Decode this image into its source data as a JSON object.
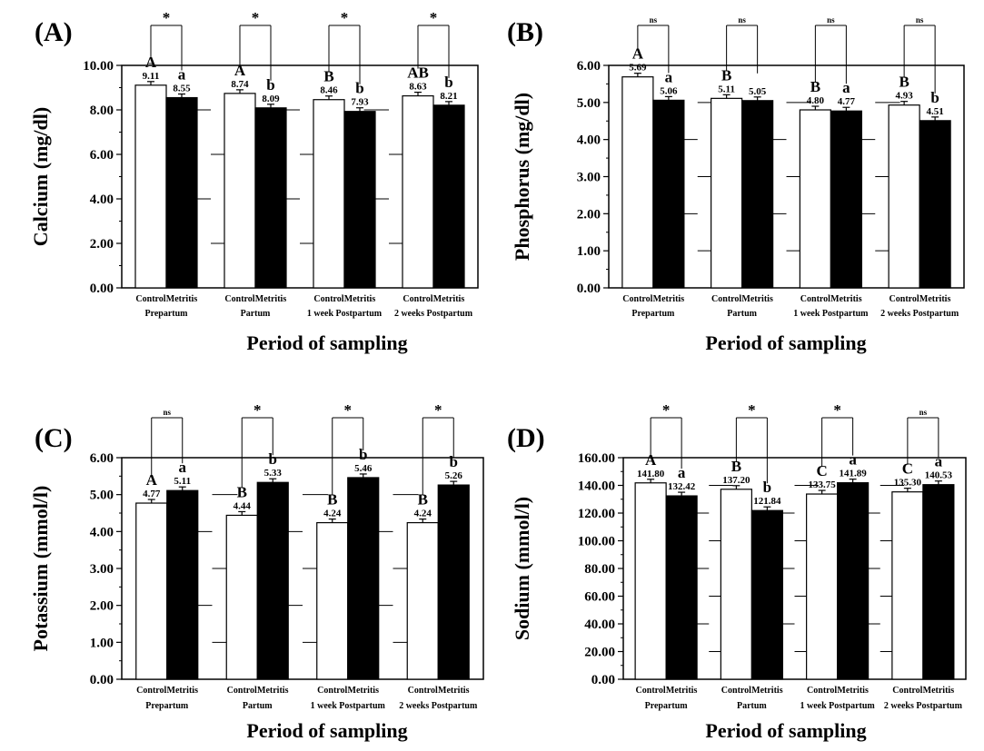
{
  "figure": {
    "xlabel": "Period of sampling",
    "group_labels": [
      "Control",
      "Metritis"
    ],
    "periods": [
      "Prepartum",
      "Partum",
      "1 week Postpartum",
      "2 weeks Postpartum"
    ],
    "colors": {
      "control": "#ffffff",
      "metritis": "#000000",
      "axis": "#000000"
    }
  },
  "chart_data": [
    {
      "type": "bar",
      "panel": "(A)",
      "ylabel": "Calcium (mg/dl)",
      "ylim": [
        0,
        10
      ],
      "yticks": [
        "0.00",
        "2.00",
        "4.00",
        "6.00",
        "8.00",
        "10.00"
      ],
      "categories": [
        "Prepartum",
        "Partum",
        "1 week Postpartum",
        "2 weeks Postpartum"
      ],
      "series": [
        {
          "name": "Control",
          "values": [
            9.11,
            8.74,
            8.46,
            8.63
          ],
          "labels": [
            "9.11",
            "8.74",
            "8.46",
            "8.63"
          ],
          "letters": [
            "A",
            "A",
            "B",
            "AB"
          ]
        },
        {
          "name": "Metritis",
          "values": [
            8.55,
            8.09,
            7.93,
            8.21
          ],
          "labels": [
            "8.55",
            "8.09",
            "7.93",
            "8.21"
          ],
          "letters": [
            "a",
            "b",
            "b",
            "b"
          ]
        }
      ],
      "significance": [
        "*",
        "*",
        "*",
        "*"
      ]
    },
    {
      "type": "bar",
      "panel": "(B)",
      "ylabel": "Phosphorus (mg/dl)",
      "ylim": [
        0,
        6
      ],
      "yticks": [
        "0.00",
        "1.00",
        "2.00",
        "3.00",
        "4.00",
        "5.00",
        "6.00"
      ],
      "categories": [
        "Prepartum",
        "Partum",
        "1 week Postpartum",
        "2 weeks Postpartum"
      ],
      "series": [
        {
          "name": "Control",
          "values": [
            5.69,
            5.11,
            4.8,
            4.93
          ],
          "labels": [
            "5.69",
            "5.11",
            "4.80",
            "4.93"
          ],
          "letters": [
            "A",
            "B",
            "B",
            "B"
          ]
        },
        {
          "name": "Metritis",
          "values": [
            5.06,
            5.05,
            4.77,
            4.51
          ],
          "labels": [
            "5.06",
            "5.05",
            "4.77",
            "4.51"
          ],
          "letters": [
            "a",
            "",
            "a",
            "b"
          ]
        }
      ],
      "significance": [
        "ns",
        "ns",
        "ns",
        "ns"
      ]
    },
    {
      "type": "bar",
      "panel": "(C)",
      "ylabel": "Potassium (mmol/l)",
      "ylim": [
        0,
        6
      ],
      "yticks": [
        "0.00",
        "1.00",
        "2.00",
        "3.00",
        "4.00",
        "5.00",
        "6.00"
      ],
      "categories": [
        "Prepartum",
        "Partum",
        "1 week Postpartum",
        "2 weeks Postpartum"
      ],
      "series": [
        {
          "name": "Control",
          "values": [
            4.77,
            4.44,
            4.24,
            4.24
          ],
          "labels": [
            "4.77",
            "4.44",
            "4.24",
            "4.24"
          ],
          "letters": [
            "A",
            "B",
            "B",
            "B"
          ]
        },
        {
          "name": "Metritis",
          "values": [
            5.11,
            5.33,
            5.46,
            5.26
          ],
          "labels": [
            "5.11",
            "5.33",
            "5.46",
            "5.26"
          ],
          "letters": [
            "a",
            "b",
            "b",
            "b"
          ]
        }
      ],
      "significance": [
        "ns",
        "*",
        "*",
        "*"
      ]
    },
    {
      "type": "bar",
      "panel": "(D)",
      "ylabel": "Sodium (mmol/l)",
      "ylim": [
        0,
        160
      ],
      "yticks": [
        "0.00",
        "20.00",
        "40.00",
        "60.00",
        "80.00",
        "100.00",
        "120.00",
        "140.00",
        "160.00"
      ],
      "categories": [
        "Prepartum",
        "Partum",
        "1 week Postpartum",
        "2 weeks Postpartum"
      ],
      "series": [
        {
          "name": "Control",
          "values": [
            141.8,
            137.2,
            133.75,
            135.3
          ],
          "labels": [
            "141.80",
            "137.20",
            "133.75",
            "135.30"
          ],
          "letters": [
            "A",
            "B",
            "C",
            "C"
          ]
        },
        {
          "name": "Metritis",
          "values": [
            132.42,
            121.84,
            141.89,
            140.53
          ],
          "labels": [
            "132.42",
            "121.84",
            "141.89",
            "140.53"
          ],
          "letters": [
            "a",
            "b",
            "a",
            "a"
          ]
        }
      ],
      "significance": [
        "*",
        "*",
        "*",
        "ns"
      ]
    }
  ]
}
